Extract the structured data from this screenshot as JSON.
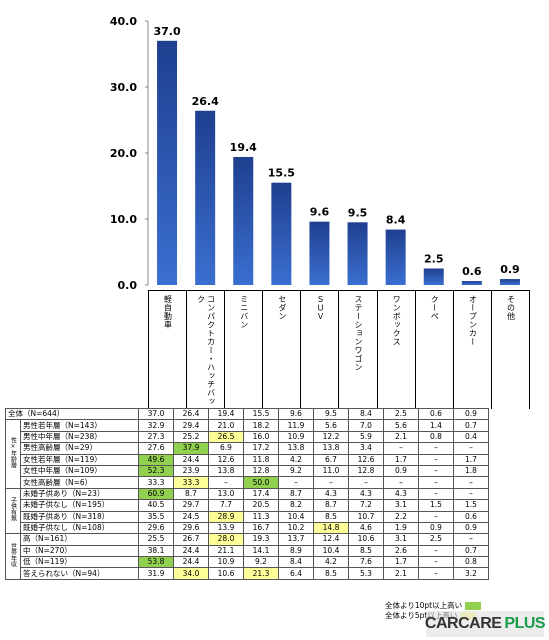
{
  "chart_data": {
    "type": "bar",
    "categories": [
      "軽自動車",
      "コンパクトカー・ハッチバック",
      "ミニバン",
      "セダン",
      "ＳＵＶ",
      "ステーションワゴン",
      "ワンボックス",
      "クーペ",
      "オープンカー",
      "その他"
    ],
    "values": [
      37.0,
      26.4,
      19.4,
      15.5,
      9.6,
      9.5,
      8.4,
      2.5,
      0.6,
      0.9
    ],
    "value_labels": [
      "37.0",
      "26.4",
      "19.4",
      "15.5",
      "9.6",
      "9.5",
      "8.4",
      "2.5",
      "0.6",
      "0.9"
    ],
    "yticks": [
      "0.0",
      "10.0",
      "20.0",
      "30.0",
      "40.0"
    ],
    "ylim": [
      0,
      40
    ],
    "bar_color": "#1f3f8f",
    "grid": false
  },
  "table": {
    "rows": [
      {
        "group": "",
        "label": "全体（N=644）",
        "values": [
          "37.0",
          "26.4",
          "19.4",
          "15.5",
          "9.6",
          "9.5",
          "8.4",
          "2.5",
          "0.6",
          "0.9"
        ],
        "hl": [
          "",
          "",
          "",
          "",
          "",
          "",
          "",
          "",
          "",
          ""
        ]
      },
      {
        "group": "性×年齢層",
        "label": "男性若年層（N=143）",
        "values": [
          "32.9",
          "29.4",
          "21.0",
          "18.2",
          "11.9",
          "5.6",
          "7.0",
          "5.6",
          "1.4",
          "0.7"
        ],
        "hl": [
          "",
          "",
          "",
          "",
          "",
          "",
          "",
          "",
          "",
          ""
        ]
      },
      {
        "group": "",
        "label": "男性中年層（N=238）",
        "values": [
          "27.3",
          "25.2",
          "26.5",
          "16.0",
          "10.9",
          "12.2",
          "5.9",
          "2.1",
          "0.8",
          "0.4"
        ],
        "hl": [
          "",
          "",
          "y",
          "",
          "",
          "",
          "",
          "",
          "",
          ""
        ]
      },
      {
        "group": "",
        "label": "男性高齢層（N=29）",
        "values": [
          "27.6",
          "37.9",
          "6.9",
          "17.2",
          "13.8",
          "13.8",
          "3.4",
          "–",
          "–",
          "–"
        ],
        "hl": [
          "",
          "g",
          "",
          "",
          "",
          "",
          "",
          "",
          "",
          ""
        ]
      },
      {
        "group": "",
        "label": "女性若年層（N=119）",
        "values": [
          "49.6",
          "24.4",
          "12.6",
          "11.8",
          "4.2",
          "6.7",
          "12.6",
          "1.7",
          "–",
          "1.7"
        ],
        "hl": [
          "g",
          "",
          "",
          "",
          "",
          "",
          "",
          "",
          "",
          ""
        ]
      },
      {
        "group": "",
        "label": "女性中年層（N=109）",
        "values": [
          "52.3",
          "23.9",
          "13.8",
          "12.8",
          "9.2",
          "11.0",
          "12.8",
          "0.9",
          "–",
          "1.8"
        ],
        "hl": [
          "g",
          "",
          "",
          "",
          "",
          "",
          "",
          "",
          "",
          ""
        ]
      },
      {
        "group": "",
        "label": "女性高齢層（N=6）",
        "values": [
          "33.3",
          "33.3",
          "–",
          "50.0",
          "–",
          "–",
          "–",
          "–",
          "–",
          "–"
        ],
        "hl": [
          "",
          "y",
          "",
          "g",
          "",
          "",
          "",
          "",
          "",
          ""
        ]
      },
      {
        "group": "子供有無",
        "label": "未婚子供あり（N=23）",
        "values": [
          "60.9",
          "8.7",
          "13.0",
          "17.4",
          "8.7",
          "4.3",
          "4.3",
          "4.3",
          "–",
          "–"
        ],
        "hl": [
          "g",
          "",
          "",
          "",
          "",
          "",
          "",
          "",
          "",
          ""
        ]
      },
      {
        "group": "",
        "label": "未婚子供なし（N=195）",
        "values": [
          "40.5",
          "29.7",
          "7.7",
          "20.5",
          "8.2",
          "8.7",
          "7.2",
          "3.1",
          "1.5",
          "1.5"
        ],
        "hl": [
          "",
          "",
          "",
          "",
          "",
          "",
          "",
          "",
          "",
          ""
        ]
      },
      {
        "group": "",
        "label": "既婚子供あり（N=318）",
        "values": [
          "35.5",
          "24.5",
          "28.9",
          "11.3",
          "10.4",
          "8.5",
          "10.7",
          "2.2",
          "–",
          "0.6"
        ],
        "hl": [
          "",
          "",
          "y",
          "",
          "",
          "",
          "",
          "",
          "",
          ""
        ]
      },
      {
        "group": "",
        "label": "既婚子供なし（N=108）",
        "values": [
          "29.6",
          "29.6",
          "13.9",
          "16.7",
          "10.2",
          "14.8",
          "4.6",
          "1.9",
          "0.9",
          "0.9"
        ],
        "hl": [
          "",
          "",
          "",
          "",
          "",
          "y",
          "",
          "",
          "",
          ""
        ]
      },
      {
        "group": "世帯年収",
        "label": "高（N=161）",
        "values": [
          "25.5",
          "26.7",
          "28.0",
          "19.3",
          "13.7",
          "12.4",
          "10.6",
          "3.1",
          "2.5",
          "–"
        ],
        "hl": [
          "",
          "",
          "y",
          "",
          "",
          "",
          "",
          "",
          "",
          ""
        ]
      },
      {
        "group": "",
        "label": "中（N=270）",
        "values": [
          "38.1",
          "24.4",
          "21.1",
          "14.1",
          "8.9",
          "10.4",
          "8.5",
          "2.6",
          "–",
          "0.7"
        ],
        "hl": [
          "",
          "",
          "",
          "",
          "",
          "",
          "",
          "",
          "",
          ""
        ]
      },
      {
        "group": "",
        "label": "低（N=119）",
        "values": [
          "53.8",
          "24.4",
          "10.9",
          "9.2",
          "8.4",
          "4.2",
          "7.6",
          "1.7",
          "–",
          "0.8"
        ],
        "hl": [
          "g",
          "",
          "",
          "",
          "",
          "",
          "",
          "",
          "",
          ""
        ]
      },
      {
        "group": "",
        "label": "答えられない（N=94）",
        "values": [
          "31.9",
          "34.0",
          "10.6",
          "21.3",
          "6.4",
          "8.5",
          "5.3",
          "2.1",
          "–",
          "3.2"
        ],
        "hl": [
          "",
          "y",
          "",
          "y",
          "",
          "",
          "",
          "",
          "",
          ""
        ]
      }
    ]
  },
  "legend": {
    "items": [
      {
        "label": "全体より10pt以上高い",
        "color": "#92d050"
      },
      {
        "label": "全体より5pt以上高い",
        "color": "#ffff99"
      }
    ]
  },
  "watermark": {
    "care": "CARCARE",
    "plus": "PLUS"
  }
}
